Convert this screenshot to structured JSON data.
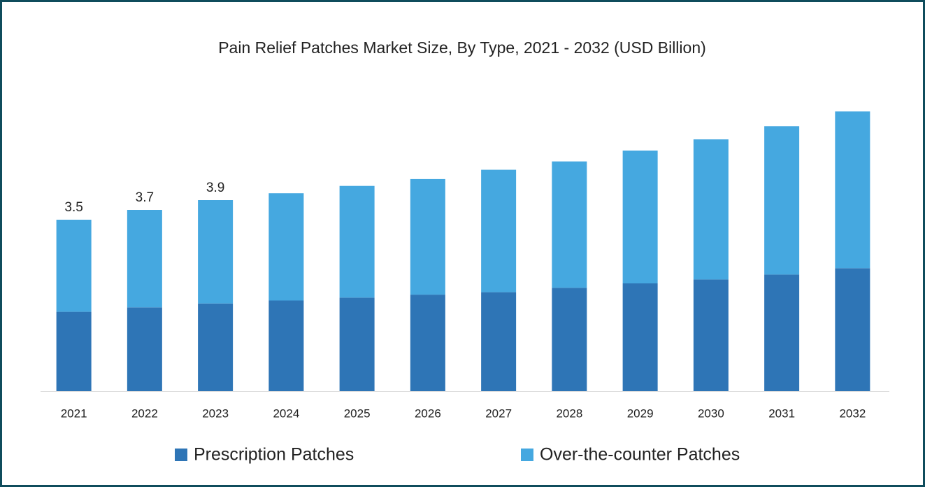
{
  "chart_data": {
    "type": "stacked-bar",
    "title": "Pain Relief Patches Market Size, By Type, 2021 - 2032 (USD Billion)",
    "categories": [
      "2021",
      "2022",
      "2023",
      "2024",
      "2025",
      "2026",
      "2027",
      "2028",
      "2029",
      "2030",
      "2031",
      "2032"
    ],
    "series": [
      {
        "name": "Prescription Patches",
        "color": "#2e75b6",
        "values": [
          1.62,
          1.71,
          1.79,
          1.85,
          1.91,
          1.97,
          2.02,
          2.11,
          2.2,
          2.28,
          2.38,
          2.51
        ]
      },
      {
        "name": "Over-the-counter Patches",
        "color": "#45a8e0",
        "values": [
          1.88,
          1.99,
          2.11,
          2.19,
          2.28,
          2.36,
          2.5,
          2.58,
          2.71,
          2.86,
          3.03,
          3.2
        ]
      }
    ],
    "totals": [
      3.5,
      3.7,
      3.9
    ],
    "ylim": [
      0,
      6
    ]
  }
}
